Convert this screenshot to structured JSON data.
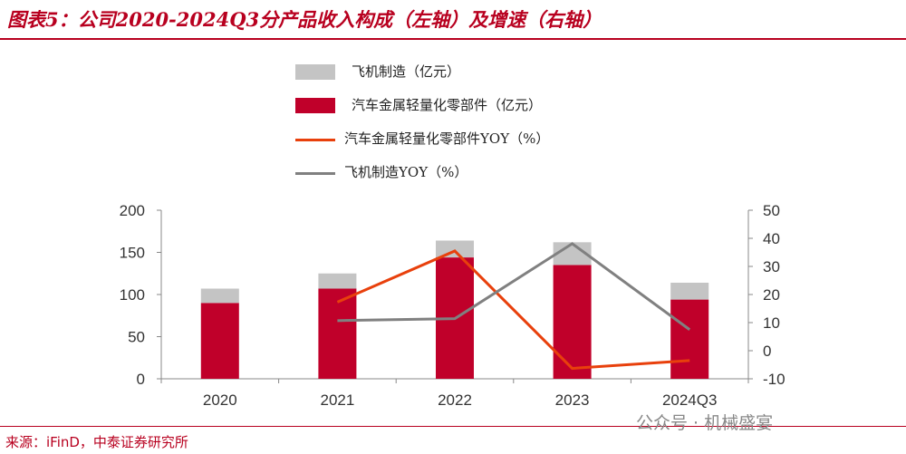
{
  "title": "图表5：公司2020-2024Q3分产品收入构成（左轴）及增速（右轴）",
  "source": "来源：iFinD，中泰证券研究所",
  "watermark": "公众号 · 机械盛宴",
  "chart_data": {
    "type": "bar",
    "stacked": true,
    "categories": [
      "2020",
      "2021",
      "2022",
      "2023",
      "2024Q3"
    ],
    "series": [
      {
        "name": "汽车金属轻量化零部件（亿元）",
        "kind": "bar",
        "axis": "left",
        "color": "#c0002a",
        "values": [
          90,
          107,
          144,
          135,
          94
        ]
      },
      {
        "name": "飞机制造（亿元）",
        "kind": "bar",
        "axis": "left",
        "color": "#c4c4c4",
        "values": [
          17,
          18,
          20,
          27,
          20
        ]
      },
      {
        "name": "汽车金属轻量化零部件YOY（%）",
        "kind": "line",
        "axis": "right",
        "color": "#e8400c",
        "values": [
          null,
          17.3,
          35.5,
          -6.3,
          -3.5
        ]
      },
      {
        "name": "飞机制造YOY（%）",
        "kind": "line",
        "axis": "right",
        "color": "#808080",
        "values": [
          null,
          10.7,
          11.4,
          38.1,
          7.5
        ]
      }
    ],
    "legend_order": [
      1,
      0,
      2,
      3
    ],
    "ylim_left": [
      0,
      200
    ],
    "yticks_left": [
      "0",
      "50",
      "100",
      "150",
      "200"
    ],
    "ylim_right": [
      -10,
      50
    ],
    "yticks_right": [
      "-10",
      "0",
      "10",
      "20",
      "30",
      "40",
      "50"
    ],
    "legend_position": "top"
  }
}
